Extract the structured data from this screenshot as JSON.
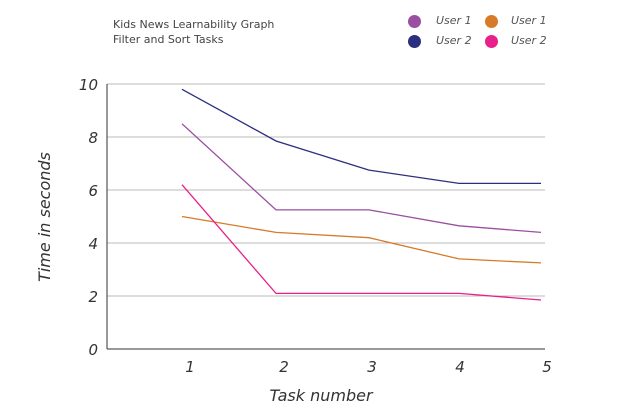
{
  "chart_data": {
    "type": "line",
    "title": "Kids News Learnability Graph",
    "subtitle": "Filter and Sort Tasks",
    "xlabel": "Task number",
    "ylabel": "Time in seconds",
    "x": [
      1,
      2,
      3,
      4,
      5
    ],
    "xticks": [
      "1",
      "2",
      "3",
      "4",
      "5"
    ],
    "yticks": [
      "0",
      "2",
      "4",
      "6",
      "8",
      "10"
    ],
    "ylim": [
      0,
      10
    ],
    "grid": "horizontal",
    "legend": "top-right",
    "series": [
      {
        "name": "User 1",
        "color": "#9b4fa0",
        "values": [
          8.5,
          5.25,
          5.25,
          4.65,
          4.4
        ]
      },
      {
        "name": "User 2",
        "color": "#2b2f7e",
        "values": [
          9.8,
          7.85,
          6.75,
          6.25,
          6.25
        ]
      },
      {
        "name": "User 1",
        "color": "#d77a2a",
        "values": [
          5.0,
          4.4,
          4.2,
          3.4,
          3.25
        ]
      },
      {
        "name": "User 2",
        "color": "#e8208a",
        "values": [
          6.2,
          2.1,
          2.1,
          2.1,
          1.85
        ]
      }
    ]
  }
}
